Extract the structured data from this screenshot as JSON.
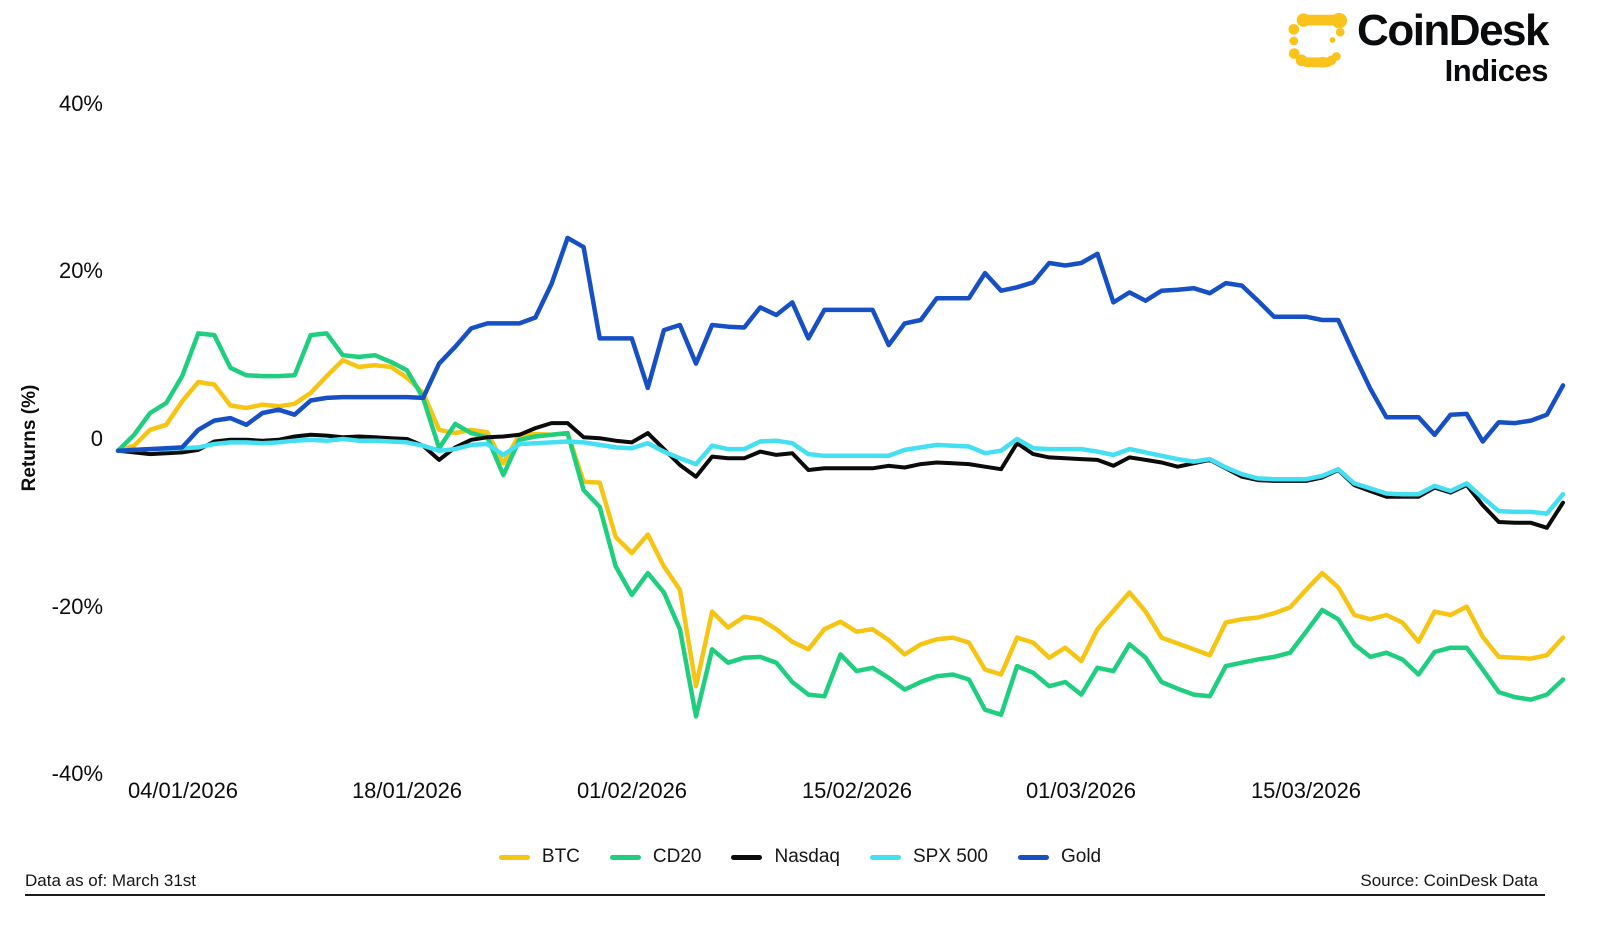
{
  "logo": {
    "brand": "CoinDesk",
    "sub": "Indices",
    "mark_color": "#F9C31B"
  },
  "y_axis": {
    "title": "Returns (%)",
    "ticks": [
      "40%",
      "20%",
      "0",
      "-20%",
      "-40%"
    ]
  },
  "x_axis": {
    "ticks": [
      "04/01/2026",
      "18/01/2026",
      "01/02/2026",
      "15/02/2026",
      "01/03/2026",
      "15/03/2026"
    ]
  },
  "legend": {
    "items": [
      {
        "label": "BTC",
        "color": "#F6C413"
      },
      {
        "label": "CD20",
        "color": "#1FCE7F"
      },
      {
        "label": "Nasdaq",
        "color": "#0b0b0b"
      },
      {
        "label": "SPX 500",
        "color": "#45DFF2"
      },
      {
        "label": "Gold",
        "color": "#1750C4"
      }
    ]
  },
  "footer": {
    "left": "Data as of:  March 31st",
    "right": "Source: CoinDesk Data"
  },
  "chart_data": {
    "type": "line",
    "title": "",
    "xlabel": "",
    "ylabel": "Returns (%)",
    "ylim": [
      -42,
      42
    ],
    "grid": false,
    "legend_position": "bottom-center",
    "frequency": "daily",
    "x_start": "31/12/2025",
    "x_end": "31/03/2026",
    "x_tick_days": [
      4,
      18,
      32,
      46,
      60,
      74
    ],
    "x_tick_labels": [
      "04/01/2026",
      "18/01/2026",
      "01/02/2026",
      "15/02/2026",
      "01/03/2026",
      "15/03/2026"
    ],
    "series": [
      {
        "name": "BTC",
        "color": "#F6C413",
        "values": [
          -1.4,
          -0.8,
          1.1,
          1.7,
          4.5,
          6.8,
          6.5,
          4.0,
          3.7,
          4.1,
          3.9,
          4.2,
          5.5,
          7.5,
          9.4,
          8.6,
          8.8,
          8.6,
          7.3,
          5.5,
          1.1,
          0.7,
          1.1,
          0.8,
          -2.9,
          0.5,
          0.6,
          0.5,
          0.7,
          -5.1,
          -5.2,
          -11.7,
          -13.6,
          -11.4,
          -15.2,
          -18.0,
          -29.5,
          -20.6,
          -22.5,
          -21.2,
          -21.5,
          -22.7,
          -24.2,
          -25.1,
          -22.7,
          -21.8,
          -23.0,
          -22.7,
          -24.0,
          -25.7,
          -24.5,
          -23.9,
          -23.7,
          -24.3,
          -27.5,
          -28.1,
          -23.7,
          -24.3,
          -26.1,
          -24.9,
          -26.5,
          -22.7,
          -20.5,
          -18.3,
          -20.6,
          -23.7,
          -24.4,
          -25.1,
          -25.8,
          -21.9,
          -21.5,
          -21.3,
          -20.8,
          -20.1,
          -18.0,
          -16.0,
          -17.7,
          -21.0,
          -21.5,
          -21.0,
          -21.9,
          -24.2,
          -20.6,
          -21.0,
          -20.0,
          -23.6,
          -26.0,
          -26.1,
          -26.2,
          -25.8,
          -23.7
        ]
      },
      {
        "name": "CD20",
        "color": "#1FCE7F",
        "values": [
          -1.4,
          0.5,
          3.1,
          4.3,
          7.5,
          12.6,
          12.4,
          8.5,
          7.6,
          7.5,
          7.5,
          7.6,
          12.4,
          12.6,
          10.0,
          9.8,
          10.0,
          9.2,
          8.2,
          4.9,
          -1.1,
          1.8,
          0.7,
          0.2,
          -4.3,
          -0.1,
          0.3,
          0.5,
          0.7,
          -6.1,
          -8.1,
          -15.2,
          -18.6,
          -16.0,
          -18.3,
          -22.7,
          -33.1,
          -25.1,
          -26.7,
          -26.1,
          -26.0,
          -26.7,
          -29.0,
          -30.5,
          -30.7,
          -25.7,
          -27.7,
          -27.3,
          -28.5,
          -29.9,
          -29.0,
          -28.3,
          -28.1,
          -28.7,
          -32.3,
          -32.9,
          -27.1,
          -27.9,
          -29.5,
          -29.0,
          -30.5,
          -27.3,
          -27.7,
          -24.5,
          -26.1,
          -29.0,
          -29.8,
          -30.5,
          -30.7,
          -27.1,
          -26.7,
          -26.3,
          -26.0,
          -25.5,
          -23.0,
          -20.4,
          -21.5,
          -24.5,
          -26.0,
          -25.5,
          -26.3,
          -28.1,
          -25.4,
          -24.9,
          -24.9,
          -27.5,
          -30.2,
          -30.8,
          -31.1,
          -30.5,
          -28.7
        ]
      },
      {
        "name": "Nasdaq",
        "color": "#0b0b0b",
        "values": [
          -1.4,
          -1.6,
          -1.8,
          -1.7,
          -1.6,
          -1.3,
          -0.3,
          -0.1,
          -0.1,
          -0.2,
          -0.1,
          0.3,
          0.5,
          0.4,
          0.2,
          0.3,
          0.2,
          0.1,
          0.0,
          -0.8,
          -2.5,
          -1.0,
          -0.1,
          0.2,
          0.3,
          0.5,
          1.3,
          1.9,
          1.9,
          0.2,
          0.1,
          -0.2,
          -0.4,
          0.7,
          -1.2,
          -3.1,
          -4.5,
          -2.1,
          -2.3,
          -2.3,
          -1.5,
          -1.9,
          -1.7,
          -3.7,
          -3.5,
          -3.5,
          -3.5,
          -3.5,
          -3.2,
          -3.4,
          -3.0,
          -2.8,
          -2.9,
          -3.0,
          -3.3,
          -3.6,
          -0.5,
          -1.8,
          -2.2,
          -2.3,
          -2.4,
          -2.5,
          -3.2,
          -2.2,
          -2.5,
          -2.8,
          -3.3,
          -2.9,
          -2.5,
          -3.5,
          -4.5,
          -4.9,
          -5.0,
          -5.0,
          -5.0,
          -4.6,
          -3.7,
          -5.5,
          -6.2,
          -6.9,
          -6.9,
          -6.9,
          -5.8,
          -6.4,
          -5.5,
          -7.9,
          -9.9,
          -10.0,
          -10.0,
          -10.6,
          -7.6
        ]
      },
      {
        "name": "SPX 500",
        "color": "#45DFF2",
        "values": [
          -1.4,
          -1.3,
          -1.2,
          -1.2,
          -1.1,
          -1.0,
          -0.6,
          -0.4,
          -0.4,
          -0.5,
          -0.4,
          -0.2,
          -0.1,
          -0.2,
          0.0,
          -0.2,
          -0.2,
          -0.3,
          -0.4,
          -0.8,
          -1.4,
          -1.2,
          -0.7,
          -0.6,
          -1.9,
          -0.6,
          -0.5,
          -0.4,
          -0.3,
          -0.4,
          -0.7,
          -1.0,
          -1.1,
          -0.5,
          -1.5,
          -2.3,
          -3.0,
          -0.8,
          -1.2,
          -1.2,
          -0.3,
          -0.2,
          -0.5,
          -1.8,
          -2.0,
          -2.0,
          -2.0,
          -2.0,
          -2.0,
          -1.3,
          -1.0,
          -0.7,
          -0.8,
          -0.9,
          -1.7,
          -1.4,
          0.0,
          -1.1,
          -1.2,
          -1.2,
          -1.2,
          -1.5,
          -1.9,
          -1.2,
          -1.6,
          -2.0,
          -2.4,
          -2.7,
          -2.4,
          -3.4,
          -4.2,
          -4.7,
          -4.8,
          -4.8,
          -4.8,
          -4.4,
          -3.6,
          -5.3,
          -5.9,
          -6.5,
          -6.6,
          -6.6,
          -5.6,
          -6.2,
          -5.3,
          -7.0,
          -8.6,
          -8.7,
          -8.7,
          -8.9,
          -6.6
        ]
      },
      {
        "name": "Gold",
        "color": "#1750C4",
        "values": [
          -1.4,
          -1.3,
          -1.2,
          -1.1,
          -1.0,
          1.1,
          2.2,
          2.5,
          1.7,
          3.1,
          3.5,
          2.9,
          4.6,
          4.9,
          5.0,
          5.0,
          5.0,
          5.0,
          5.0,
          4.9,
          9.0,
          11.0,
          13.2,
          13.8,
          13.8,
          13.8,
          14.5,
          18.5,
          24.0,
          22.9,
          12.0,
          12.0,
          12.0,
          6.1,
          13.0,
          13.6,
          9.0,
          13.6,
          13.4,
          13.3,
          15.7,
          14.8,
          16.3,
          12.0,
          15.4,
          15.4,
          15.4,
          15.4,
          11.2,
          13.8,
          14.2,
          16.8,
          16.8,
          16.8,
          19.8,
          17.7,
          18.1,
          18.7,
          21.0,
          20.7,
          21.0,
          22.1,
          16.3,
          17.5,
          16.5,
          17.7,
          17.8,
          18.0,
          17.4,
          18.6,
          18.3,
          16.5,
          14.6,
          14.6,
          14.6,
          14.2,
          14.2,
          10.0,
          6.0,
          2.6,
          2.6,
          2.6,
          0.5,
          2.9,
          3.0,
          -0.3,
          2.0,
          1.9,
          2.2,
          2.9,
          6.4
        ]
      }
    ]
  }
}
